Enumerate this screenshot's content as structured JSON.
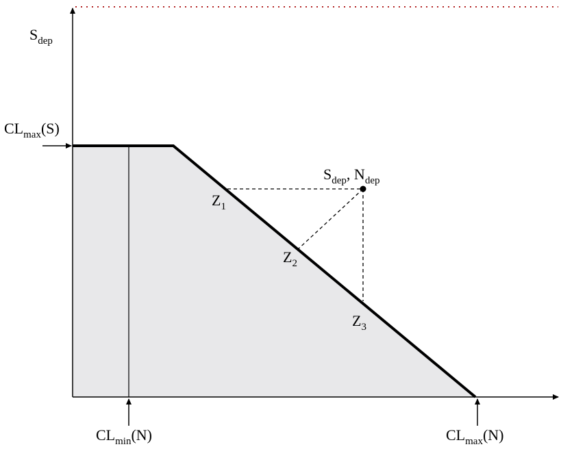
{
  "labels": {
    "y_axis": {
      "main": "S",
      "sub": "dep"
    },
    "cl_max_s": {
      "main": "CL",
      "sub": "max",
      "tail": "(S)"
    },
    "point": {
      "s_main": "S",
      "s_sub": "dep",
      "sep": ", ",
      "n_main": "N",
      "n_sub": "dep"
    },
    "z1": {
      "main": "Z",
      "sub": "1"
    },
    "z2": {
      "main": "Z",
      "sub": "2"
    },
    "z3": {
      "main": "Z",
      "sub": "3"
    },
    "cl_min_n": {
      "main": "CL",
      "sub": "min",
      "tail": "(N)"
    },
    "cl_max_n": {
      "main": "CL",
      "sub": "max",
      "tail": "(N)"
    }
  },
  "colors": {
    "region_fill": "#e8e8ea",
    "line": "#000000",
    "dotted_limit": "#b22222"
  }
}
